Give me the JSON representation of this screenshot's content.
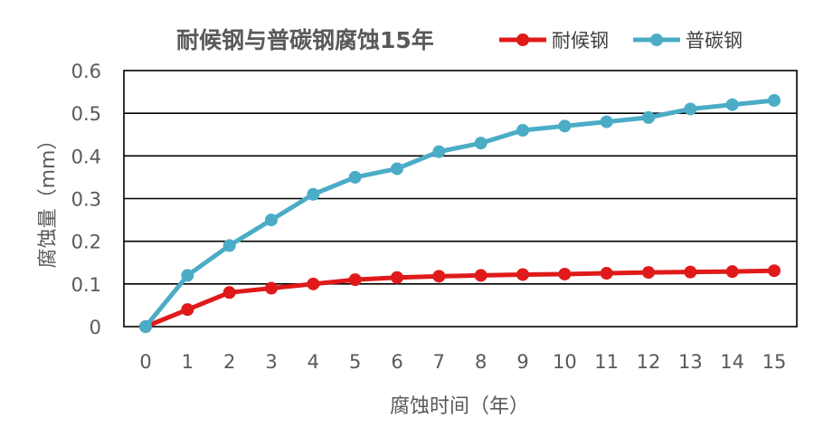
{
  "chart_data": {
    "type": "line",
    "title": "耐候钢与普碳钢腐蚀15年",
    "xlabel": "腐蚀时间（年）",
    "ylabel": "腐蚀量（mm）",
    "x": [
      0,
      1,
      2,
      3,
      4,
      5,
      6,
      7,
      8,
      9,
      10,
      11,
      12,
      13,
      14,
      15
    ],
    "x_tick_labels": [
      "0",
      "1",
      "2",
      "3",
      "4",
      "5",
      "6",
      "7",
      "8",
      "9",
      "10",
      "11",
      "12",
      "13",
      "14",
      "15"
    ],
    "y_ticks": [
      0,
      0.1,
      0.2,
      0.3,
      0.4,
      0.5,
      0.6
    ],
    "y_tick_labels": [
      "0",
      "0.1",
      "0.2",
      "0.3",
      "0.4",
      "0.5",
      "0.6"
    ],
    "ylim": [
      0,
      0.6
    ],
    "grid": true,
    "legend_position": "top-right",
    "series": [
      {
        "name": "耐候钢",
        "color": "#e01a1a",
        "values": [
          0,
          0.04,
          0.08,
          0.09,
          0.1,
          0.11,
          0.115,
          0.118,
          0.12,
          0.122,
          0.123,
          0.125,
          0.127,
          0.128,
          0.129,
          0.131
        ]
      },
      {
        "name": "普碳钢",
        "color": "#4bacc6",
        "values": [
          0,
          0.12,
          0.19,
          0.25,
          0.31,
          0.35,
          0.37,
          0.41,
          0.43,
          0.46,
          0.47,
          0.48,
          0.49,
          0.51,
          0.52,
          0.53
        ]
      }
    ]
  }
}
